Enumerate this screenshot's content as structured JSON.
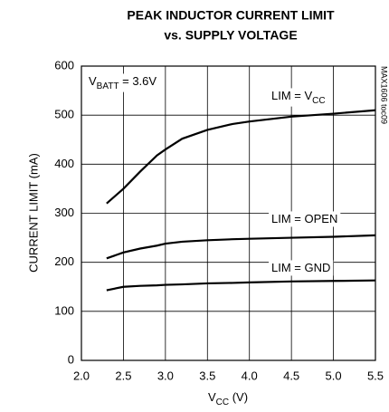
{
  "chart_data": {
    "type": "line",
    "title": "PEAK INDUCTOR CURRENT LIMIT",
    "subtitle": "vs. SUPPLY VOLTAGE",
    "y_label": "CURRENT LIMIT (mA)",
    "x_label": {
      "text": "V",
      "sub": "CC",
      "tail": " (V)"
    },
    "side_note": "MAX1606 toc09",
    "annotations": [
      {
        "text": "V",
        "sub": "BATT",
        "tail": " = 3.6V"
      },
      {
        "text": "LIM = V",
        "sub": "CC"
      },
      {
        "text": "LIM = OPEN"
      },
      {
        "text": "LIM = GND"
      }
    ],
    "x": [
      2.3,
      2.5,
      2.7,
      2.9,
      3.0,
      3.2,
      3.5,
      3.8,
      4.0,
      4.5,
      5.0,
      5.5
    ],
    "series": [
      {
        "name": "LIM = VCC",
        "color": "#000000",
        "values": [
          320,
          350,
          385,
          418,
          430,
          452,
          470,
          482,
          487,
          497,
          503,
          510
        ]
      },
      {
        "name": "LIM = OPEN",
        "color": "#000000",
        "values": [
          208,
          220,
          228,
          234,
          238,
          242,
          245,
          247,
          248,
          250,
          252,
          255
        ]
      },
      {
        "name": "LIM = GND",
        "color": "#000000",
        "values": [
          143,
          150,
          152,
          153,
          154,
          155,
          157,
          158,
          159,
          161,
          162,
          163
        ]
      }
    ],
    "xlim": [
      2.0,
      5.5
    ],
    "ylim": [
      0,
      600
    ],
    "xticks": [
      {
        "value": 2.0,
        "label": "2.0"
      },
      2.5,
      {
        "value": 3.0,
        "label": "3.0"
      },
      3.5,
      {
        "value": 4.0,
        "label": "4.0"
      },
      4.5,
      {
        "value": 5.0,
        "label": "5.0"
      },
      5.5
    ],
    "yticks": [
      0,
      100,
      200,
      300,
      400,
      500,
      600
    ],
    "grid": true
  }
}
